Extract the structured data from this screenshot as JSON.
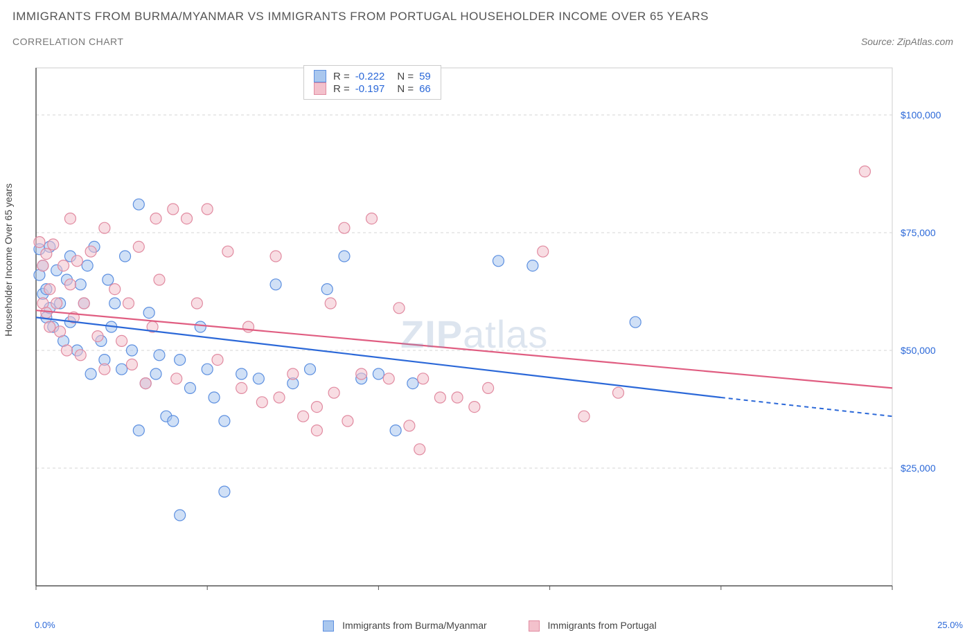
{
  "title": "IMMIGRANTS FROM BURMA/MYANMAR VS IMMIGRANTS FROM PORTUGAL HOUSEHOLDER INCOME OVER 65 YEARS",
  "subtitle": "CORRELATION CHART",
  "source": "Source: ZipAtlas.com",
  "ylabel": "Householder Income Over 65 years",
  "watermark_main": "ZIP",
  "watermark_sub": "atlas",
  "chart": {
    "type": "scatter",
    "xlim": [
      0,
      25
    ],
    "ylim": [
      0,
      110000
    ],
    "x_tick_labels": {
      "left": "0.0%",
      "right": "25.0%"
    },
    "y_ticks": [
      25000,
      50000,
      75000,
      100000
    ],
    "y_tick_labels": [
      "$25,000",
      "$50,000",
      "$75,000",
      "$100,000"
    ],
    "background_color": "#ffffff",
    "grid_color": "#dddddd",
    "axis_color": "#555555",
    "plot_border": "#cccccc",
    "marker_radius": 8,
    "marker_opacity": 0.55,
    "series": [
      {
        "name": "Immigrants from Burma/Myanmar",
        "fill": "#a9c7ee",
        "stroke": "#5c8fe0",
        "R": "-0.222",
        "N": "59",
        "trend": {
          "start": [
            0,
            57000
          ],
          "solid_end": [
            20,
            40000
          ],
          "dash_end": [
            25,
            36000
          ],
          "color": "#2b68d8"
        },
        "points": [
          [
            0.1,
            71500
          ],
          [
            0.1,
            66000
          ],
          [
            0.2,
            62000
          ],
          [
            0.2,
            68000
          ],
          [
            0.3,
            57000
          ],
          [
            0.3,
            63000
          ],
          [
            0.4,
            72000
          ],
          [
            0.4,
            59000
          ],
          [
            0.5,
            55000
          ],
          [
            0.6,
            67000
          ],
          [
            0.7,
            60000
          ],
          [
            0.8,
            52000
          ],
          [
            0.9,
            65000
          ],
          [
            1.0,
            70000
          ],
          [
            1.0,
            56000
          ],
          [
            1.2,
            50000
          ],
          [
            1.3,
            64000
          ],
          [
            1.4,
            60000
          ],
          [
            1.5,
            68000
          ],
          [
            1.6,
            45000
          ],
          [
            1.7,
            72000
          ],
          [
            1.9,
            52000
          ],
          [
            2.0,
            48000
          ],
          [
            2.1,
            65000
          ],
          [
            2.2,
            55000
          ],
          [
            2.3,
            60000
          ],
          [
            2.5,
            46000
          ],
          [
            2.6,
            70000
          ],
          [
            2.8,
            50000
          ],
          [
            3.0,
            81000
          ],
          [
            3.2,
            43000
          ],
          [
            3.3,
            58000
          ],
          [
            3.5,
            45000
          ],
          [
            3.6,
            49000
          ],
          [
            3.8,
            36000
          ],
          [
            4.0,
            35000
          ],
          [
            4.2,
            48000
          ],
          [
            4.5,
            42000
          ],
          [
            4.8,
            55000
          ],
          [
            5.0,
            46000
          ],
          [
            5.2,
            40000
          ],
          [
            5.5,
            35000
          ],
          [
            6.0,
            45000
          ],
          [
            6.5,
            44000
          ],
          [
            7.0,
            64000
          ],
          [
            7.5,
            43000
          ],
          [
            8.0,
            46000
          ],
          [
            8.5,
            63000
          ],
          [
            9.0,
            70000
          ],
          [
            9.5,
            44000
          ],
          [
            10.0,
            45000
          ],
          [
            10.5,
            33000
          ],
          [
            11.0,
            43000
          ],
          [
            13.5,
            69000
          ],
          [
            14.5,
            68000
          ],
          [
            17.5,
            56000
          ],
          [
            5.5,
            20000
          ],
          [
            4.2,
            15000
          ],
          [
            3.0,
            33000
          ]
        ]
      },
      {
        "name": "Immigrants from Portugal",
        "fill": "#f3c1cc",
        "stroke": "#e18aa0",
        "R": "-0.197",
        "N": "66",
        "trend": {
          "start": [
            0,
            58500
          ],
          "solid_end": [
            25,
            42000
          ],
          "dash_end": [
            25,
            42000
          ],
          "color": "#e05d81"
        },
        "points": [
          [
            0.1,
            73000
          ],
          [
            0.2,
            60000
          ],
          [
            0.2,
            68000
          ],
          [
            0.3,
            58000
          ],
          [
            0.3,
            70500
          ],
          [
            0.4,
            55000
          ],
          [
            0.4,
            63000
          ],
          [
            0.5,
            72500
          ],
          [
            0.6,
            60000
          ],
          [
            0.7,
            54000
          ],
          [
            0.8,
            68000
          ],
          [
            0.9,
            50000
          ],
          [
            1.0,
            64000
          ],
          [
            1.1,
            57000
          ],
          [
            1.2,
            69000
          ],
          [
            1.3,
            49000
          ],
          [
            1.4,
            60000
          ],
          [
            1.6,
            71000
          ],
          [
            1.8,
            53000
          ],
          [
            2.0,
            76000
          ],
          [
            2.0,
            46000
          ],
          [
            2.3,
            63000
          ],
          [
            2.5,
            52000
          ],
          [
            2.7,
            60000
          ],
          [
            2.8,
            47000
          ],
          [
            3.0,
            72000
          ],
          [
            3.2,
            43000
          ],
          [
            3.4,
            55000
          ],
          [
            3.6,
            65000
          ],
          [
            4.0,
            80000
          ],
          [
            4.1,
            44000
          ],
          [
            4.4,
            78000
          ],
          [
            4.7,
            60000
          ],
          [
            5.0,
            80000
          ],
          [
            5.3,
            48000
          ],
          [
            5.6,
            71000
          ],
          [
            6.0,
            42000
          ],
          [
            6.2,
            55000
          ],
          [
            6.6,
            39000
          ],
          [
            7.0,
            70000
          ],
          [
            7.1,
            40000
          ],
          [
            7.5,
            45000
          ],
          [
            7.8,
            36000
          ],
          [
            8.2,
            38000
          ],
          [
            8.6,
            60000
          ],
          [
            8.7,
            41000
          ],
          [
            9.1,
            35000
          ],
          [
            9.5,
            45000
          ],
          [
            9.8,
            78000
          ],
          [
            10.3,
            44000
          ],
          [
            10.6,
            59000
          ],
          [
            10.9,
            34000
          ],
          [
            11.3,
            44000
          ],
          [
            11.8,
            40000
          ],
          [
            12.3,
            40000
          ],
          [
            12.8,
            38000
          ],
          [
            13.2,
            42000
          ],
          [
            11.2,
            29000
          ],
          [
            14.8,
            71000
          ],
          [
            16.0,
            36000
          ],
          [
            17.0,
            41000
          ],
          [
            8.2,
            33000
          ],
          [
            9.0,
            76000
          ],
          [
            24.2,
            88000
          ],
          [
            1.0,
            78000
          ],
          [
            3.5,
            78000
          ]
        ]
      }
    ]
  }
}
